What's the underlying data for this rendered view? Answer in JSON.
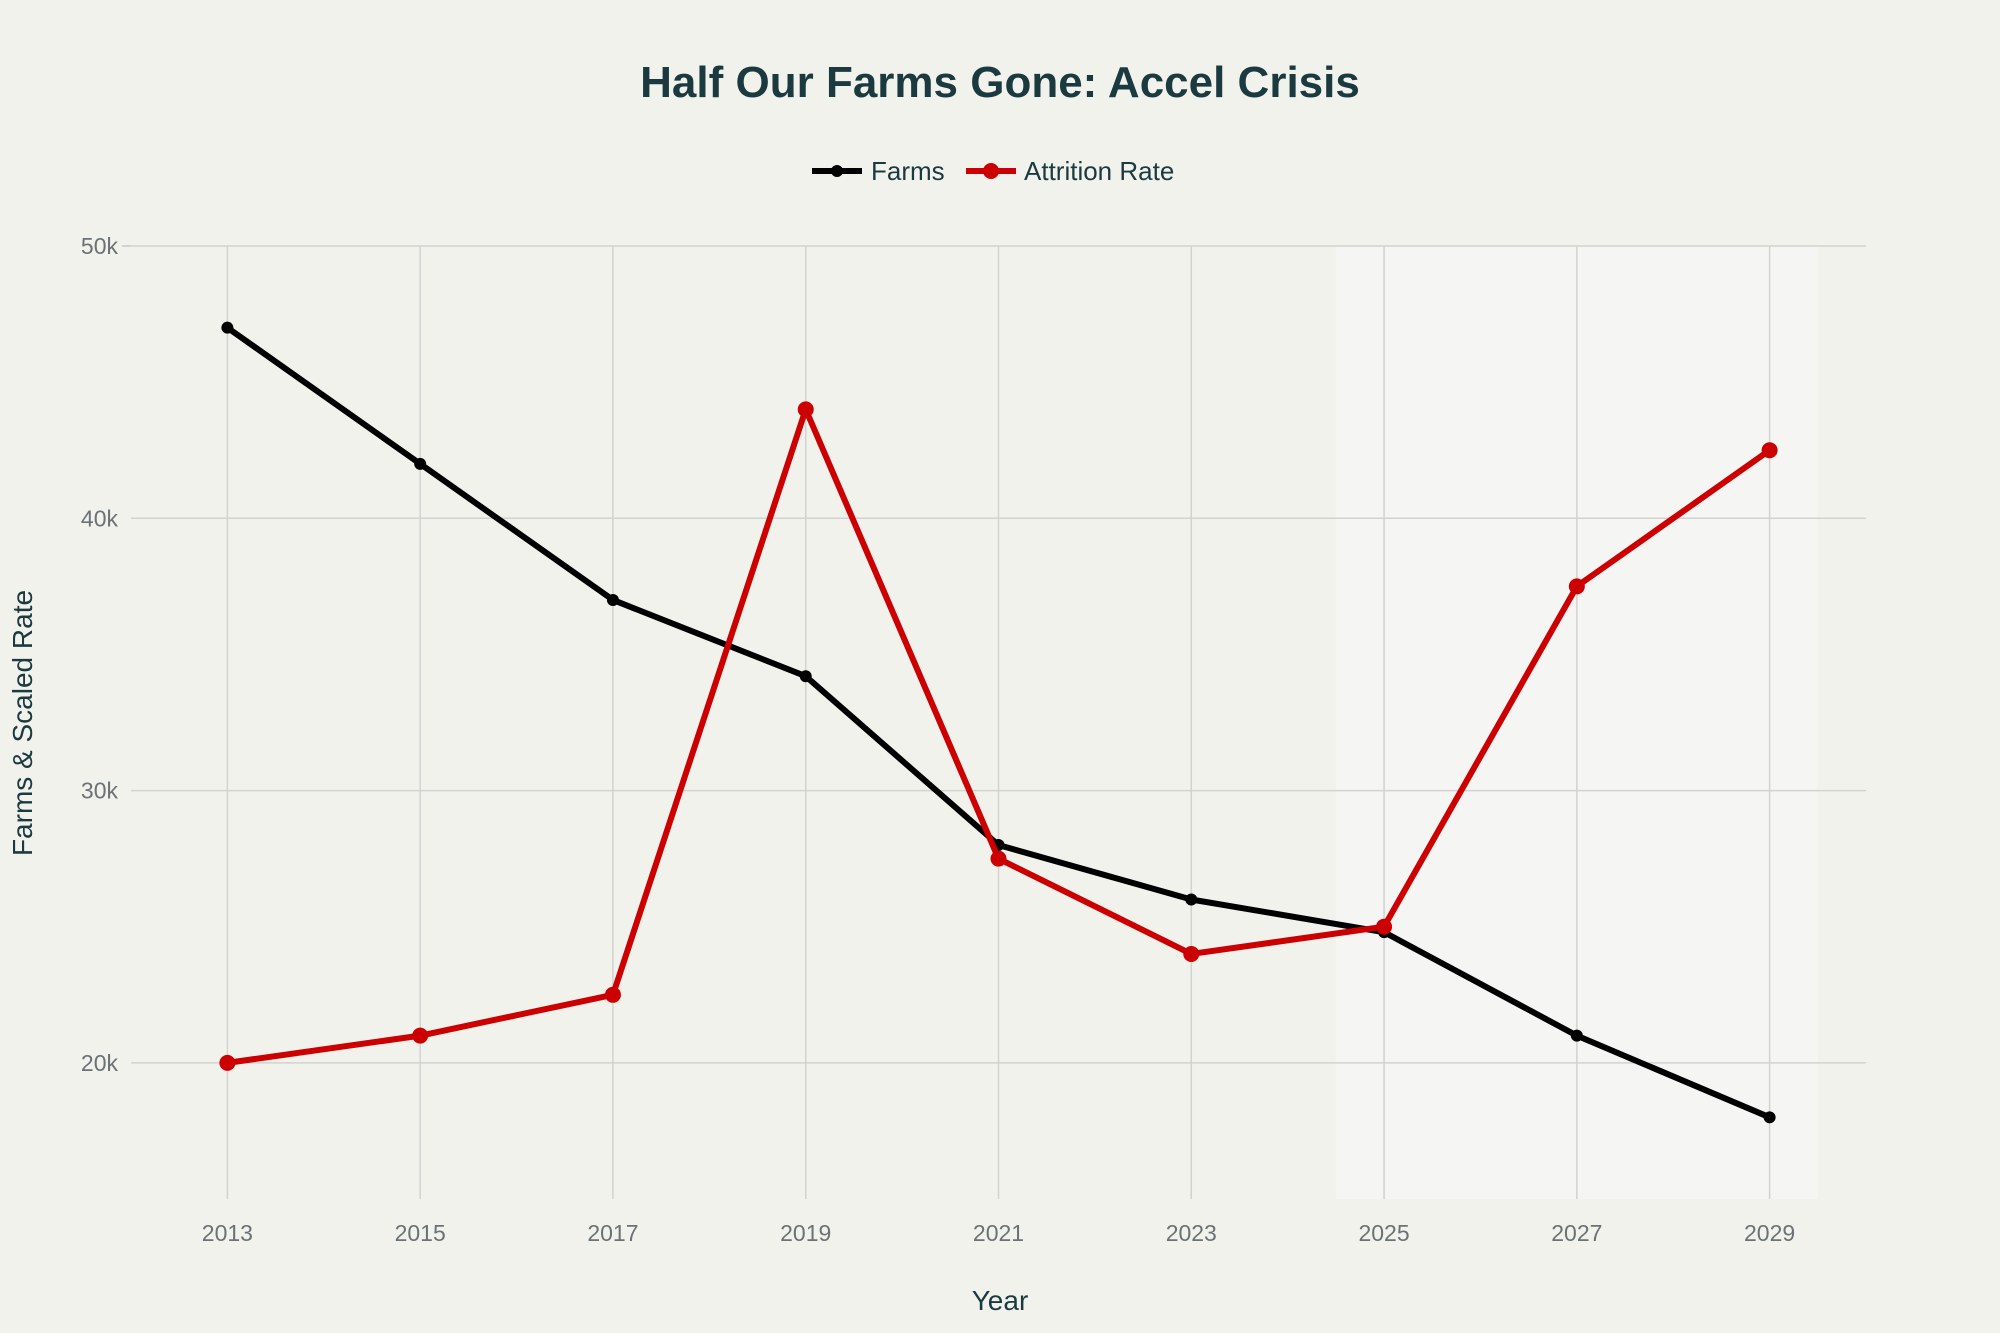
{
  "chart_data": {
    "type": "line",
    "title": "Half Our Farms Gone: Accel Crisis",
    "xlabel": "Year",
    "ylabel": "Farms & Scaled Rate",
    "x": [
      2013,
      2015,
      2017,
      2019,
      2021,
      2023,
      2025,
      2027,
      2029
    ],
    "xticks": [
      2013,
      2015,
      2017,
      2019,
      2021,
      2023,
      2025,
      2027,
      2029
    ],
    "yticks": [
      20000,
      30000,
      40000,
      50000
    ],
    "ytick_labels": [
      "20k",
      "30k",
      "40k",
      "50k"
    ],
    "xlim": [
      2012,
      2030
    ],
    "ylim": [
      15000,
      50000
    ],
    "grid": true,
    "legend_position": "top-center",
    "highlight_region": {
      "x": [
        2024.5,
        2029.5
      ],
      "color": "#f5f5f3"
    },
    "series": [
      {
        "name": "Farms",
        "color": "#000000",
        "values": [
          47000,
          42000,
          37000,
          34200,
          28000,
          26000,
          24800,
          21000,
          18000
        ]
      },
      {
        "name": "Attrition Rate",
        "color": "#cc0000",
        "values": [
          20000,
          21000,
          22500,
          44000,
          27500,
          24000,
          25000,
          37500,
          42500
        ]
      }
    ]
  }
}
